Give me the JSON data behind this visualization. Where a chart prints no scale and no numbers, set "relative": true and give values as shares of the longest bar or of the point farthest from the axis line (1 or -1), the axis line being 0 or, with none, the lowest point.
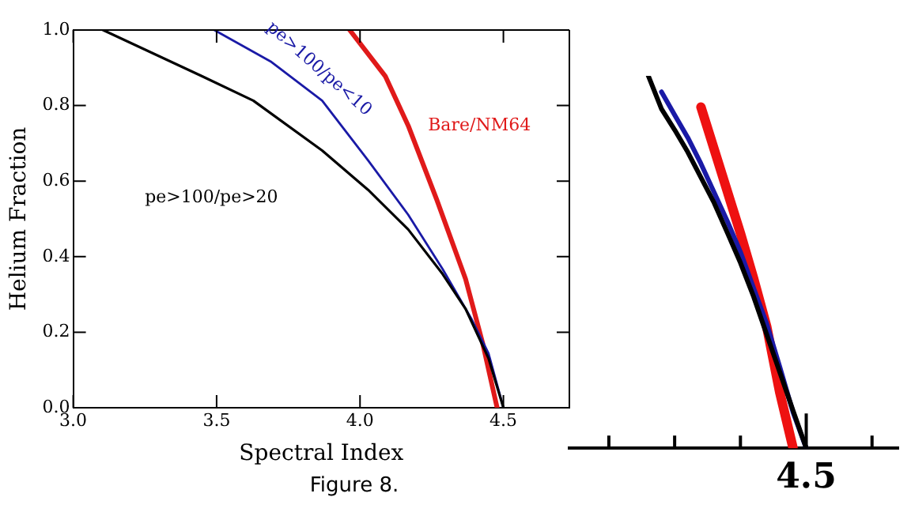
{
  "chart_data": [
    {
      "type": "line",
      "xlabel": "Spectral Index",
      "ylabel": "Helium Fraction",
      "annotations": [
        "Figure 8."
      ],
      "xlim": [
        3.0,
        4.73
      ],
      "ylim": [
        0,
        1.0
      ],
      "xticks": [
        {
          "value": 3.0,
          "label": "3.0"
        },
        3.5,
        {
          "value": 4.0,
          "label": "4.0"
        },
        4.5
      ],
      "yticks": [
        {
          "value": 0,
          "label": "0.0"
        },
        0.2,
        0.4,
        0.6,
        0.8,
        {
          "value": 1.0,
          "label": "1.0"
        }
      ],
      "grid": false,
      "legend": false,
      "marker": "none",
      "line_style": "solid",
      "series": [
        {
          "name": "pe>100/pe>20",
          "color": "#000000",
          "x": [
            3.104,
            3.448,
            3.628,
            3.868,
            4.028,
            4.168,
            4.288,
            4.368,
            4.448,
            4.5
          ],
          "values": [
            1.0,
            0.878,
            0.813,
            0.681,
            0.577,
            0.472,
            0.354,
            0.262,
            0.131,
            0
          ]
        },
        {
          "name": "pe>100/pe<10",
          "color": "#1a1aa6",
          "x": [
            3.492,
            3.688,
            3.868,
            4.028,
            4.168,
            4.288,
            4.388,
            4.448,
            4.5
          ],
          "values": [
            1.0,
            0.917,
            0.813,
            0.655,
            0.511,
            0.367,
            0.236,
            0.144,
            0
          ]
        },
        {
          "name": "Bare/NM64",
          "color": "#e01a1a",
          "x": [
            3.964,
            4.088,
            4.168,
            4.268,
            4.368,
            4.428,
            4.478
          ],
          "values": [
            1.0,
            0.878,
            0.747,
            0.55,
            0.341,
            0.17,
            0
          ]
        }
      ]
    },
    {
      "type": "line",
      "relative": true,
      "annotations": [
        "4.5"
      ],
      "categories": [
        null,
        null,
        null,
        null,
        null,
        null,
        null,
        null,
        null,
        null,
        null,
        null,
        null,
        null,
        null,
        null,
        null,
        null,
        null,
        null,
        null,
        null,
        null,
        null,
        null,
        null
      ],
      "grid": false,
      "legend": false,
      "marker": "none",
      "line_style": "solid",
      "series": [
        {
          "color": "#000000",
          "values": [
            null,
            null,
            null,
            null,
            null,
            null,
            1,
            0.911,
            0.855,
            0.795,
            0.727,
            0.659,
            0.579,
            0.498,
            0.407,
            0.305,
            0.203,
            0.101,
            0,
            null,
            null,
            null,
            null,
            null,
            null,
            null
          ]
        },
        {
          "color": "#1a1aa6",
          "values": [
            null,
            null,
            null,
            null,
            null,
            null,
            null,
            0.957,
            0.895,
            0.834,
            0.764,
            0.687,
            0.61,
            0.527,
            0.43,
            0.334,
            0.217,
            0.096,
            0,
            null,
            null,
            null,
            null,
            null,
            null,
            null
          ]
        },
        {
          "color": "#ee1111",
          "values": [
            null,
            null,
            null,
            null,
            null,
            null,
            null,
            null,
            null,
            null,
            0.916,
            0.803,
            0.69,
            0.577,
            0.456,
            0.326,
            0.148,
            0,
            null,
            null,
            null,
            null,
            null,
            null,
            null,
            null
          ]
        }
      ]
    }
  ]
}
